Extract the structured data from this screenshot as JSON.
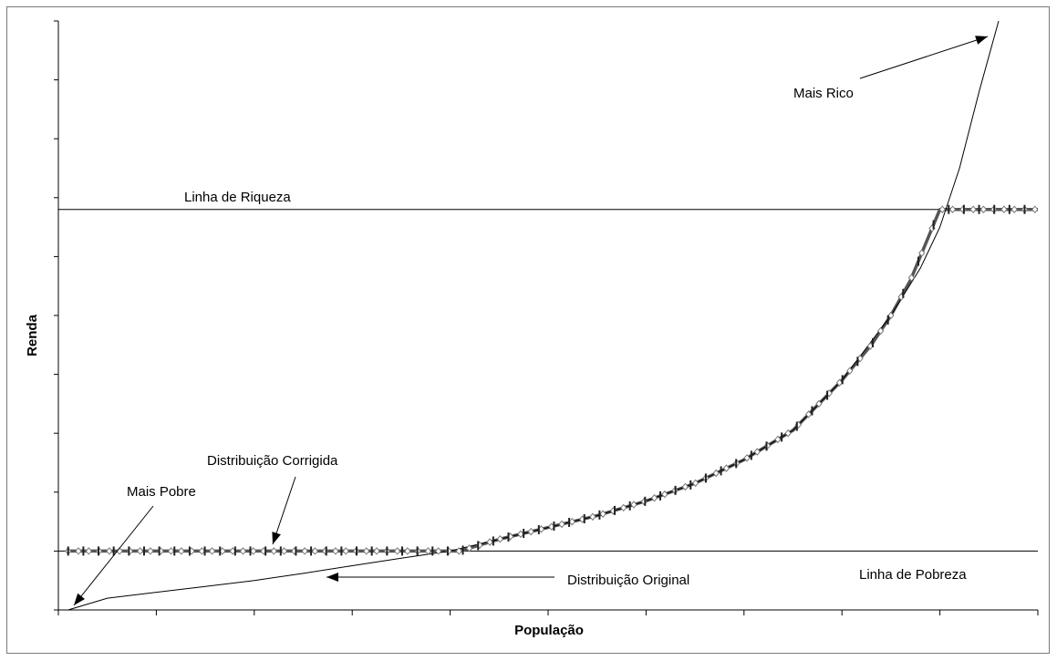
{
  "chart_data": {
    "type": "line",
    "title": "",
    "xlabel": "População",
    "ylabel": "Renda",
    "xlim": [
      0,
      1
    ],
    "ylim": [
      0,
      1
    ],
    "grid": false,
    "legend": "none",
    "reference_lines": [
      {
        "label": "Linha de Riqueza",
        "y": 0.68
      },
      {
        "label": "Linha de Pobreza",
        "y": 0.1
      }
    ],
    "series": [
      {
        "role": "original",
        "color": "#000000",
        "x": [
          0.01,
          0.05,
          0.1,
          0.15,
          0.2,
          0.25,
          0.3,
          0.35,
          0.4,
          0.45,
          0.5,
          0.55,
          0.6,
          0.65,
          0.7,
          0.75,
          0.8,
          0.85,
          0.88,
          0.9,
          0.92,
          0.94,
          0.96
        ],
        "y": [
          0.0,
          0.02,
          0.03,
          0.04,
          0.05,
          0.062,
          0.075,
          0.088,
          0.1,
          0.12,
          0.14,
          0.16,
          0.185,
          0.215,
          0.255,
          0.305,
          0.39,
          0.5,
          0.58,
          0.65,
          0.75,
          0.88,
          1.0
        ]
      },
      {
        "role": "corrected",
        "color": "#555555",
        "x": [
          0.01,
          0.05,
          0.1,
          0.15,
          0.2,
          0.25,
          0.3,
          0.35,
          0.41,
          0.45,
          0.5,
          0.55,
          0.6,
          0.65,
          0.7,
          0.75,
          0.8,
          0.83,
          0.85,
          0.87,
          0.9,
          0.92,
          0.94,
          0.97,
          1.0
        ],
        "y": [
          0.1,
          0.1,
          0.1,
          0.1,
          0.1,
          0.1,
          0.1,
          0.1,
          0.1,
          0.12,
          0.14,
          0.16,
          0.185,
          0.215,
          0.255,
          0.305,
          0.39,
          0.45,
          0.5,
          0.56,
          0.68,
          0.68,
          0.68,
          0.68,
          0.68
        ]
      }
    ],
    "annotations": [
      {
        "text": "Mais Rico"
      },
      {
        "text": "Mais Pobre"
      },
      {
        "text": "Distribuição Corrigida"
      },
      {
        "text": "Distribuição Original"
      }
    ]
  }
}
